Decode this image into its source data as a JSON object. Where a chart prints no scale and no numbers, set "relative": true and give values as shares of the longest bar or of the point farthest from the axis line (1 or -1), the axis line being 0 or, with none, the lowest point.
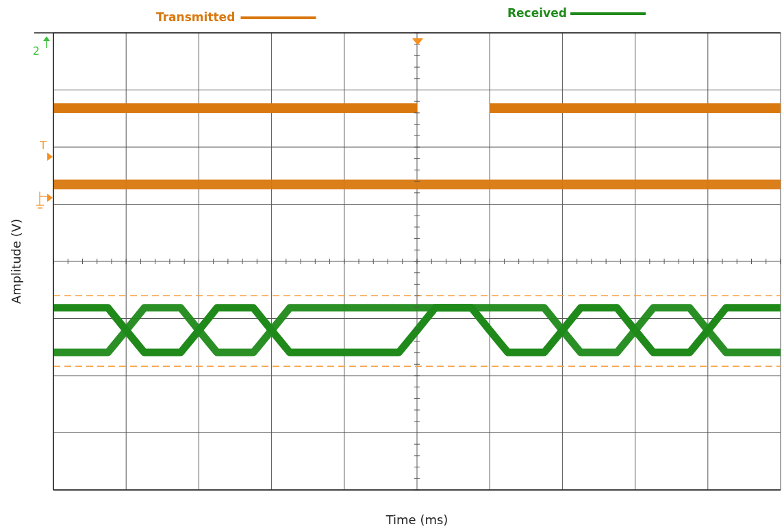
{
  "chart_data": {
    "type": "line",
    "relative": true,
    "xlabel": "Time (ms)",
    "ylabel": "Amplitude (V)",
    "legend": "top",
    "grid": true,
    "marker": "none",
    "line_style": "solid",
    "annotations": [
      "2",
      "T"
    ],
    "categories": [
      null,
      null,
      null,
      null,
      null,
      null,
      null,
      null,
      null,
      null,
      null,
      null,
      null,
      null,
      null,
      null,
      null,
      null,
      null,
      null,
      null,
      null,
      null,
      null,
      null,
      null,
      null,
      null,
      null,
      null,
      null,
      null,
      null,
      null,
      null,
      null,
      null,
      null,
      null,
      null,
      null
    ],
    "ref_lines": [
      {
        "axis": "y",
        "value": 0.509,
        "label": null,
        "color": "#f7a040",
        "line_style": "dashed"
      },
      {
        "axis": "y",
        "value": 0.324,
        "label": null,
        "color": "#f7a040",
        "line_style": "dashed"
      }
    ],
    "series": [
      {
        "name": "Transmitted",
        "color": "#d9780f",
        "values": [
          1,
          1,
          1,
          1,
          1,
          1,
          1,
          1,
          1,
          1,
          1,
          1,
          1,
          1,
          1,
          1,
          1,
          1,
          1,
          1,
          1,
          null,
          null,
          null,
          1,
          1,
          1,
          1,
          1,
          1,
          1,
          1,
          1,
          1,
          1,
          1,
          1,
          1,
          1,
          1,
          1
        ]
      },
      {
        "color": "#d9780f",
        "values": [
          0.8,
          0.8,
          0.8,
          0.8,
          0.8,
          0.8,
          0.8,
          0.8,
          0.8,
          0.8,
          0.8,
          0.8,
          0.8,
          0.8,
          0.8,
          0.8,
          0.8,
          0.8,
          0.8,
          0.8,
          0.8,
          0.8,
          0.8,
          0.8,
          0.8,
          0.8,
          0.8,
          0.8,
          0.8,
          0.8,
          0.8,
          0.8,
          0.8,
          0.8,
          0.8,
          0.8,
          0.8,
          0.8,
          0.8,
          0.8,
          0.8
        ]
      },
      {
        "name": "Received",
        "color": "#1f8a1a",
        "values": [
          0.477,
          0.477,
          0.477,
          0.477,
          0.418,
          0.36,
          0.36,
          0.36,
          0.418,
          0.477,
          0.477,
          0.477,
          0.418,
          0.36,
          0.36,
          0.36,
          0.36,
          0.36,
          0.36,
          0.36,
          0.418,
          0.477,
          0.477,
          0.477,
          0.418,
          0.36,
          0.36,
          0.36,
          0.418,
          0.477,
          0.477,
          0.477,
          0.418,
          0.36,
          0.36,
          0.36,
          0.418,
          0.477,
          0.477,
          0.477,
          0.477
        ]
      },
      {
        "color": "#1f8a1a",
        "values": [
          0.36,
          0.36,
          0.36,
          0.36,
          0.418,
          0.477,
          0.477,
          0.477,
          0.418,
          0.36,
          0.36,
          0.36,
          0.418,
          0.477,
          0.477,
          0.477,
          0.477,
          0.477,
          0.477,
          0.477,
          0.477,
          0.477,
          0.477,
          0.477,
          0.477,
          0.477,
          0.477,
          0.477,
          0.418,
          0.36,
          0.36,
          0.36,
          0.418,
          0.477,
          0.477,
          0.477,
          0.418,
          0.36,
          0.36,
          0.36,
          0.36
        ]
      }
    ]
  }
}
